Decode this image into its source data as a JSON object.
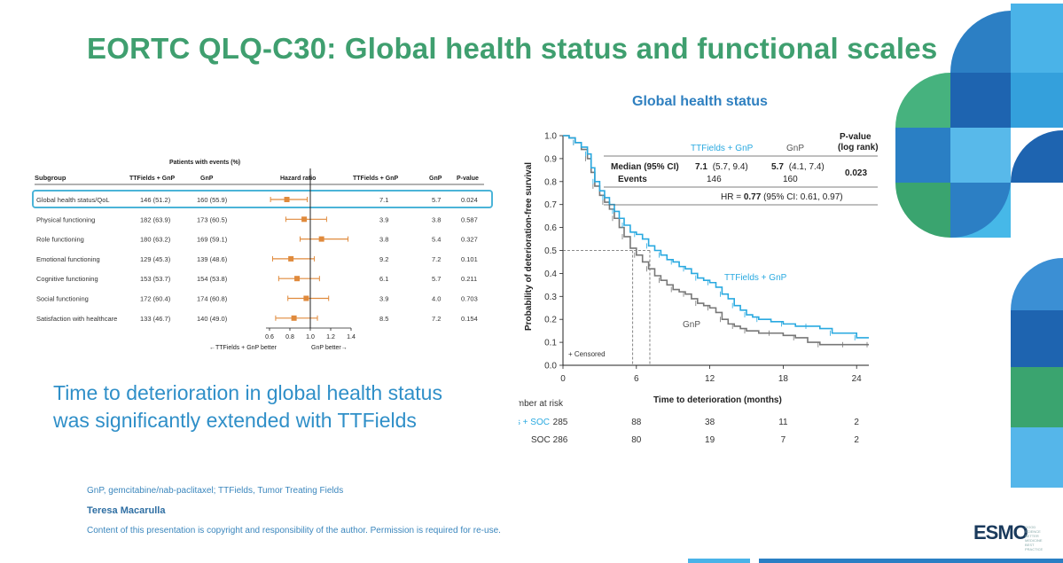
{
  "slide": {
    "title": "EORTC QLQ-C30: Global health status and functional scales",
    "tagline_line1": "Time to deterioration in global health status",
    "tagline_line2": "was significantly extended with TTFields",
    "footnote": "GnP, gemcitabine/nab-paclitaxel; TTFields, Tumor Treating Fields",
    "author": "Teresa Macarulla",
    "copyright": "Content of this presentation is copyright and responsibility of the author. Permission is required for re-use.",
    "logo_text": "ESMO",
    "logo_subtext": "GOOD SCIENCE BETTER MEDICINE BEST PRACTICE"
  },
  "colors": {
    "title_green": "#3f9f6f",
    "ttfields_blue": "#29a9e0",
    "gnp_gray": "#777777",
    "orange": "#e08a3c",
    "highlight": "#4bb4d8"
  },
  "chart_data": [
    {
      "type": "forest",
      "header_top": "Patients with events  (%)",
      "columns": {
        "subgroup": "Subgroup",
        "tt_events": "TTFields + GnP",
        "gnp_events": "GnP",
        "hr": "Hazard ratio",
        "tt_median": "TTFields + GnP",
        "gnp_median": "GnP",
        "pvalue": "P-value"
      },
      "axis": {
        "min": 0.4,
        "max": 1.4,
        "ticks": [
          "0.6",
          "0.8",
          "1.0",
          "1.2",
          "1.4"
        ],
        "ref_line": 1.0
      },
      "left_label": "←TTFields + GnP better",
      "right_label": "GnP better→",
      "rows": [
        {
          "subgroup": "Global health status/QoL",
          "tt": "146 (51.2)",
          "gnp": "160 (55.9)",
          "hr": 0.77,
          "lo": 0.61,
          "hi": 0.97,
          "tt_med": "7.1",
          "gnp_med": "5.7",
          "p": "0.024",
          "highlight": true
        },
        {
          "subgroup": "Physical functioning",
          "tt": "182 (63.9)",
          "gnp": "173 (60.5)",
          "hr": 0.94,
          "lo": 0.76,
          "hi": 1.16,
          "tt_med": "3.9",
          "gnp_med": "3.8",
          "p": "0.587"
        },
        {
          "subgroup": "Role functioning",
          "tt": "180 (63.2)",
          "gnp": "169 (59.1)",
          "hr": 1.11,
          "lo": 0.9,
          "hi": 1.37,
          "tt_med": "3.8",
          "gnp_med": "5.4",
          "p": "0.327"
        },
        {
          "subgroup": "Emotional functioning",
          "tt": "129 (45.3)",
          "gnp": "139 (48.6)",
          "hr": 0.81,
          "lo": 0.63,
          "hi": 1.04,
          "tt_med": "9.2",
          "gnp_med": "7.2",
          "p": "0.101"
        },
        {
          "subgroup": "Cognitive functioning",
          "tt": "153 (53.7)",
          "gnp": "154 (53.8)",
          "hr": 0.87,
          "lo": 0.69,
          "hi": 1.09,
          "tt_med": "6.1",
          "gnp_med": "5.7",
          "p": "0.211"
        },
        {
          "subgroup": "Social functioning",
          "tt": "172 (60.4)",
          "gnp": "174 (60.8)",
          "hr": 0.96,
          "lo": 0.78,
          "hi": 1.18,
          "tt_med": "3.9",
          "gnp_med": "4.0",
          "p": "0.703"
        },
        {
          "subgroup": "Satisfaction with healthcare",
          "tt": "133 (46.7)",
          "gnp": "140 (49.0)",
          "hr": 0.84,
          "lo": 0.66,
          "hi": 1.07,
          "tt_med": "8.5",
          "gnp_med": "7.2",
          "p": "0.154"
        }
      ]
    },
    {
      "type": "line",
      "title": "Global health status",
      "xlabel": "Time to deterioration (months)",
      "ylabel": "Probability of deterioration-free survival",
      "xlim": [
        0,
        25
      ],
      "ylim": [
        0,
        1
      ],
      "xticks": [
        0,
        6,
        12,
        18,
        24
      ],
      "yticks": [
        "0.0",
        "0.1",
        "0.2",
        "0.3",
        "0.4",
        "0.5",
        "0.6",
        "0.7",
        "0.8",
        "0.9",
        "1.0"
      ],
      "series": [
        {
          "name": "TTFields + GnP",
          "label_on_plot": "TTFields + GnP",
          "color": "#29a9e0",
          "x": [
            0,
            0.5,
            1,
            1.5,
            2,
            2.3,
            2.6,
            3,
            3.4,
            3.8,
            4.2,
            4.6,
            5,
            5.5,
            6,
            6.5,
            7,
            7.5,
            8,
            8.5,
            9,
            9.5,
            10,
            10.5,
            11,
            11.5,
            12,
            12.5,
            13,
            13.5,
            14,
            14.5,
            15,
            15.5,
            16,
            17,
            18,
            19,
            20,
            21,
            22,
            23,
            24,
            25
          ],
          "y": [
            1.0,
            0.99,
            0.97,
            0.95,
            0.92,
            0.86,
            0.8,
            0.76,
            0.73,
            0.7,
            0.67,
            0.64,
            0.61,
            0.58,
            0.57,
            0.55,
            0.52,
            0.5,
            0.48,
            0.46,
            0.45,
            0.43,
            0.42,
            0.4,
            0.38,
            0.37,
            0.36,
            0.34,
            0.31,
            0.29,
            0.26,
            0.24,
            0.22,
            0.21,
            0.2,
            0.19,
            0.18,
            0.17,
            0.17,
            0.16,
            0.14,
            0.14,
            0.12,
            0.12
          ]
        },
        {
          "name": "GnP",
          "label_on_plot": "GnP",
          "color": "#777777",
          "x": [
            0,
            0.5,
            1,
            1.5,
            2,
            2.3,
            2.6,
            3,
            3.4,
            3.8,
            4.2,
            4.6,
            5,
            5.5,
            6,
            6.5,
            7,
            7.5,
            8,
            8.5,
            9,
            9.5,
            10,
            10.5,
            11,
            11.5,
            12,
            12.5,
            13,
            13.5,
            14,
            14.5,
            15,
            16,
            17,
            18,
            19,
            20,
            21,
            22,
            23,
            24,
            25
          ],
          "y": [
            1.0,
            0.99,
            0.97,
            0.94,
            0.9,
            0.84,
            0.78,
            0.74,
            0.71,
            0.68,
            0.64,
            0.6,
            0.56,
            0.51,
            0.48,
            0.45,
            0.42,
            0.39,
            0.37,
            0.35,
            0.33,
            0.32,
            0.31,
            0.29,
            0.27,
            0.26,
            0.25,
            0.23,
            0.2,
            0.18,
            0.17,
            0.16,
            0.15,
            0.14,
            0.14,
            0.13,
            0.12,
            0.1,
            0.09,
            0.09,
            0.09,
            0.09,
            0.09
          ]
        }
      ],
      "median_lines": [
        {
          "x": 5.7,
          "y": 0.5
        },
        {
          "x": 7.1,
          "y": 0.5
        }
      ],
      "censored_legend": "+ Censored",
      "table": {
        "pvalue_header1": "P-value",
        "pvalue_header2": "(log rank)",
        "col_tt": "TTFields + GnP",
        "col_gnp": "GnP",
        "row1_label": "Median (95% CI)",
        "tt_median_bold": "7.1",
        "tt_median_ci": "(5.7, 9.4)",
        "gnp_median_bold": "5.7",
        "gnp_median_ci": "(4.1, 7.4)",
        "pvalue": "0.023",
        "row2_label": "Events",
        "tt_events": "146",
        "gnp_events": "160",
        "hr_prefix": "HR = ",
        "hr_bold": "0.77",
        "hr_suffix": " (95% CI: 0.61, 0.97)"
      },
      "at_risk": {
        "title": "Number at risk",
        "rows": [
          {
            "label": "TTFields + SOC",
            "values": [
              "285",
              "88",
              "38",
              "11",
              "2"
            ]
          },
          {
            "label": "SOC",
            "values": [
              "286",
              "80",
              "19",
              "7",
              "2"
            ]
          }
        ]
      }
    }
  ]
}
